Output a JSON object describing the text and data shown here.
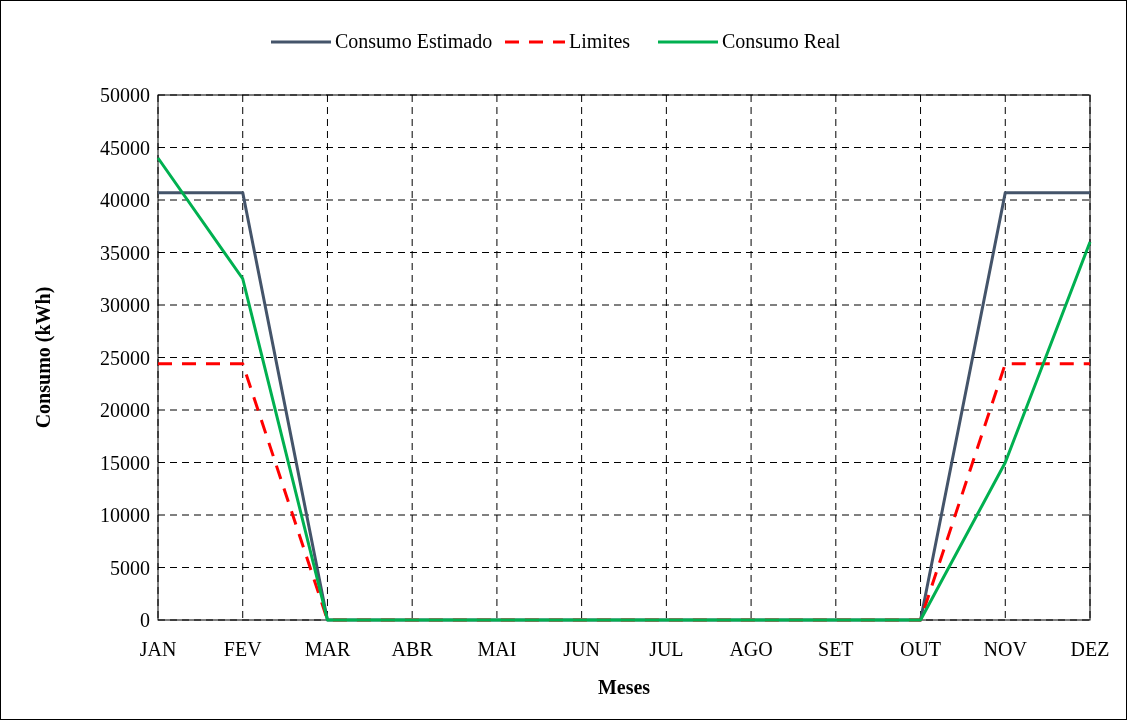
{
  "chart_data": {
    "type": "line",
    "xlabel": "Meses",
    "ylabel": "Consumo (kWh)",
    "categories": [
      "JAN",
      "FEV",
      "MAR",
      "ABR",
      "MAI",
      "JUN",
      "JUL",
      "AGO",
      "SET",
      "OUT",
      "NOV",
      "DEZ"
    ],
    "series": [
      {
        "name": "Consumo Estimado",
        "color": "#44546a",
        "line_style": "solid",
        "values": [
          40700,
          40700,
          0,
          0,
          0,
          0,
          0,
          0,
          0,
          0,
          40700,
          40700
        ]
      },
      {
        "name": "Limites",
        "color": "#ff0000",
        "line_style": "dashed",
        "values": [
          24400,
          24400,
          0,
          0,
          0,
          0,
          0,
          0,
          0,
          0,
          24400,
          24400
        ]
      },
      {
        "name": "Consumo Real",
        "color": "#00b050",
        "line_style": "solid",
        "values": [
          44000,
          32500,
          0,
          0,
          0,
          0,
          0,
          0,
          0,
          0,
          15000,
          36000
        ]
      }
    ],
    "ylim": [
      0,
      50000
    ],
    "yticks": [
      0,
      5000,
      10000,
      15000,
      20000,
      25000,
      30000,
      35000,
      40000,
      45000,
      50000
    ],
    "grid": true,
    "legend": "top",
    "marker": "none"
  }
}
